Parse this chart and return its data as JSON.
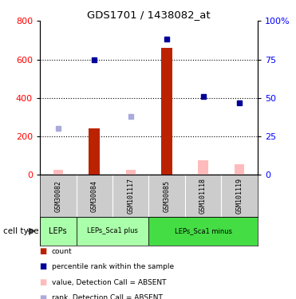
{
  "title": "GDS1701 / 1438082_at",
  "samples": [
    "GSM30082",
    "GSM30084",
    "GSM101117",
    "GSM30085",
    "GSM101118",
    "GSM101119"
  ],
  "bar_values_present": [
    null,
    240,
    null,
    660,
    null,
    null
  ],
  "bar_values_absent": [
    28,
    null,
    28,
    null,
    75,
    55
  ],
  "rank_present_pct": [
    null,
    75,
    null,
    88,
    51,
    47
  ],
  "rank_absent_pct": [
    30,
    null,
    38,
    null,
    null,
    null
  ],
  "ylim_left": [
    0,
    800
  ],
  "ylim_right": [
    0,
    100
  ],
  "yticks_left": [
    0,
    200,
    400,
    600,
    800
  ],
  "yticks_right": [
    0,
    25,
    50,
    75,
    100
  ],
  "ytick_labels_right": [
    "0",
    "25",
    "50",
    "75",
    "100%"
  ],
  "ytick_labels_left": [
    "0",
    "200",
    "400",
    "600",
    "800"
  ],
  "bar_color_present": "#bb2200",
  "bar_color_absent": "#ffbbbb",
  "dot_color_present": "#000099",
  "dot_color_absent": "#aaaadd",
  "grid_lines": [
    200,
    400,
    600
  ],
  "bar_width": 0.3,
  "dot_size": 5,
  "cell_type_groups": [
    {
      "label": "LEPs",
      "start": 0,
      "end": 1,
      "color": "#aaffaa"
    },
    {
      "label": "LEPs_Sca1 plus",
      "start": 1,
      "end": 3,
      "color": "#aaffaa"
    },
    {
      "label": "LEPs_Sca1 minus",
      "start": 3,
      "end": 6,
      "color": "#44dd44"
    }
  ],
  "label_bg_color": "#cccccc",
  "cell_type_label": "cell type",
  "legend_items": [
    {
      "label": "count",
      "color": "#bb2200"
    },
    {
      "label": "percentile rank within the sample",
      "color": "#000099"
    },
    {
      "label": "value, Detection Call = ABSENT",
      "color": "#ffbbbb"
    },
    {
      "label": "rank, Detection Call = ABSENT",
      "color": "#aaaadd"
    }
  ]
}
